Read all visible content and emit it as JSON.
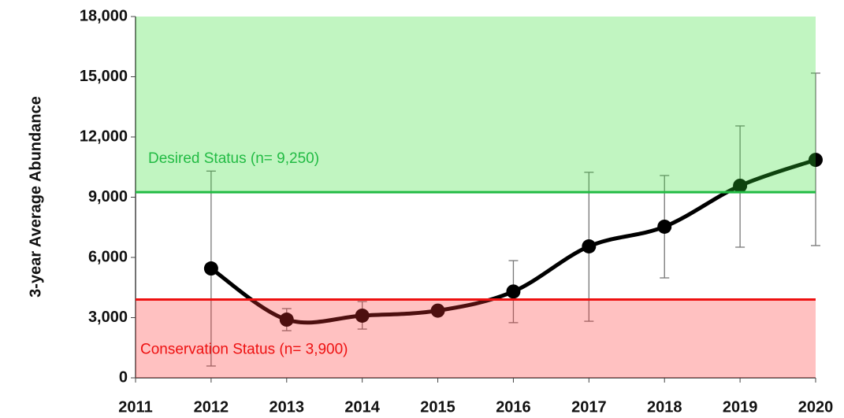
{
  "chart_data": {
    "type": "line",
    "y_label": "3-year Average Abundance",
    "x": [
      2012,
      2013,
      2014,
      2015,
      2016,
      2017,
      2018,
      2019,
      2020
    ],
    "series": [
      {
        "color": "#000000",
        "values": [
          5450,
          2900,
          3100,
          3350,
          4300,
          6550,
          7530,
          9570,
          10860
        ],
        "lower": [
          590,
          2350,
          2430,
          null,
          2750,
          2820,
          4980,
          6510,
          6590
        ],
        "upper": [
          10300,
          3450,
          3800,
          null,
          5840,
          10240,
          10080,
          12550,
          15180
        ]
      }
    ],
    "thresholds": [
      {
        "label": "Desired Status (n= 9,250)",
        "value": 9250,
        "color": "#22bb44",
        "region": [
          9250,
          18000
        ],
        "region_color": "#33dd33"
      },
      {
        "label": "Conservation Status (n= 3,900)",
        "value": 3900,
        "color": "#ee1111",
        "region": [
          0,
          3900
        ],
        "region_color": "#ff3333"
      }
    ],
    "xlim": [
      2011,
      2020
    ],
    "xticks": [
      2011,
      2012,
      2013,
      2014,
      2015,
      2016,
      2017,
      2018,
      2019,
      2020
    ],
    "ylim": [
      0,
      18000
    ],
    "yticks": [
      0,
      {
        "value": 3000,
        "label": "3,000"
      },
      {
        "value": 6000,
        "label": "6,000"
      },
      {
        "value": 9000,
        "label": "9,000"
      },
      {
        "value": 12000,
        "label": "12,000"
      },
      {
        "value": 15000,
        "label": "15,000"
      },
      {
        "value": 18000,
        "label": "18,000"
      }
    ]
  }
}
